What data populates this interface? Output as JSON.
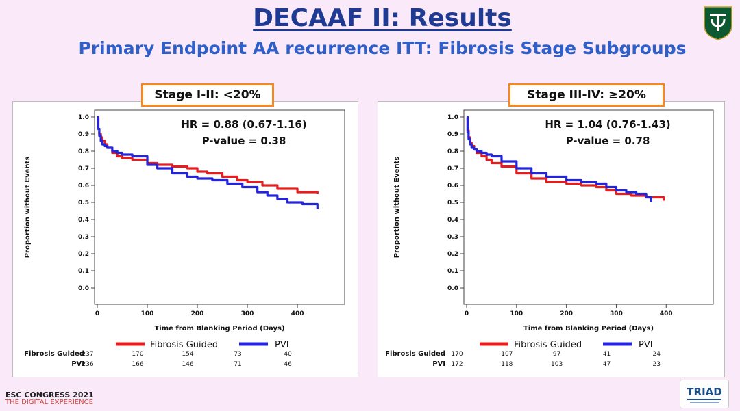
{
  "slide": {
    "title": "DECAAF II: Results",
    "subtitle": "Primary Endpoint AA recurrence ITT: Fibrosis Stage Subgroups",
    "footer_line1": "ESC CONGRESS 2021",
    "footer_line2": "THE DIGITAL EXPERIENCE",
    "triad_logo_text": "TRIAD",
    "colors": {
      "title": "#1f3a93",
      "subtitle": "#2f5fc9",
      "background": "#f9e9f9",
      "box_border": "#f08a28"
    }
  },
  "legend": {
    "fibrosis_guided": "Fibrosis Guided",
    "pvi": "PVI"
  },
  "series_colors": {
    "fibrosis_guided": "#e41e1e",
    "pvi": "#2424d8"
  },
  "chart_data": [
    {
      "type": "line",
      "stage_label": "Stage I-II: <20%",
      "hr_text": "HR = 0.88 (0.67-1.16)",
      "p_text": "P-value = 0.38",
      "xlabel": "Time from Blanking Period (Days)",
      "ylabel": "Proportion without Events",
      "xlim": [
        0,
        440
      ],
      "ylim": [
        0,
        1
      ],
      "xticks": [
        0,
        100,
        200,
        300,
        400
      ],
      "yticks": [
        0.0,
        0.1,
        0.2,
        0.3,
        0.4,
        0.5,
        0.6,
        0.7,
        0.8,
        0.9,
        1.0
      ],
      "ytick_labels": [
        "0.0",
        "0.1",
        "0.2",
        "0.3",
        "0.4",
        "0.5",
        "0.6",
        "0.7",
        "0.8",
        "0.9",
        "1.0"
      ],
      "series": [
        {
          "key": "fibrosis_guided",
          "name": "Fibrosis Guided",
          "x": [
            0,
            2,
            4,
            7,
            10,
            15,
            20,
            30,
            40,
            50,
            70,
            100,
            120,
            150,
            180,
            200,
            220,
            250,
            280,
            300,
            330,
            360,
            400,
            440
          ],
          "y": [
            1.0,
            0.93,
            0.9,
            0.88,
            0.86,
            0.84,
            0.82,
            0.79,
            0.77,
            0.76,
            0.75,
            0.73,
            0.72,
            0.71,
            0.7,
            0.68,
            0.67,
            0.65,
            0.63,
            0.62,
            0.6,
            0.58,
            0.56,
            0.55
          ],
          "risk": [
            237,
            170,
            154,
            73,
            40
          ]
        },
        {
          "key": "pvi",
          "name": "PVI",
          "x": [
            0,
            2,
            4,
            7,
            10,
            15,
            20,
            30,
            40,
            50,
            70,
            100,
            120,
            150,
            180,
            200,
            230,
            260,
            290,
            320,
            340,
            360,
            380,
            410,
            440
          ],
          "y": [
            1.0,
            0.93,
            0.89,
            0.86,
            0.84,
            0.83,
            0.82,
            0.8,
            0.79,
            0.78,
            0.77,
            0.72,
            0.7,
            0.67,
            0.65,
            0.64,
            0.63,
            0.61,
            0.59,
            0.56,
            0.54,
            0.52,
            0.5,
            0.49,
            0.46
          ],
          "risk": [
            236,
            166,
            146,
            71,
            46
          ]
        }
      ]
    },
    {
      "type": "line",
      "stage_label": "Stage III-IV: ≥20%",
      "hr_text": "HR = 1.04 (0.76-1.43)",
      "p_text": "P-value = 0.78",
      "xlabel": "Time from Blanking Period (Days)",
      "ylabel": "Proportion without Events",
      "xlim": [
        0,
        440
      ],
      "ylim": [
        0,
        1
      ],
      "xticks": [
        0,
        100,
        200,
        300,
        400
      ],
      "yticks": [
        0.0,
        0.1,
        0.2,
        0.3,
        0.4,
        0.5,
        0.6,
        0.7,
        0.8,
        0.9,
        1.0
      ],
      "ytick_labels": [
        "0.0",
        "0.1",
        "0.2",
        "0.3",
        "0.4",
        "0.5",
        "0.6",
        "0.7",
        "0.8",
        "0.9",
        "1.0"
      ],
      "series": [
        {
          "key": "fibrosis_guided",
          "name": "Fibrosis Guided",
          "x": [
            0,
            2,
            4,
            7,
            10,
            15,
            20,
            30,
            40,
            50,
            70,
            100,
            130,
            160,
            200,
            230,
            260,
            280,
            300,
            330,
            360,
            395
          ],
          "y": [
            1.0,
            0.92,
            0.88,
            0.85,
            0.83,
            0.81,
            0.79,
            0.77,
            0.75,
            0.73,
            0.71,
            0.67,
            0.64,
            0.62,
            0.61,
            0.6,
            0.59,
            0.57,
            0.55,
            0.54,
            0.53,
            0.51
          ],
          "risk": [
            170,
            107,
            97,
            41,
            24
          ]
        },
        {
          "key": "pvi",
          "name": "PVI",
          "x": [
            0,
            2,
            4,
            7,
            10,
            15,
            20,
            30,
            40,
            50,
            70,
            100,
            130,
            160,
            200,
            230,
            260,
            280,
            300,
            320,
            340,
            360,
            370
          ],
          "y": [
            1.0,
            0.91,
            0.87,
            0.84,
            0.82,
            0.81,
            0.8,
            0.79,
            0.78,
            0.77,
            0.74,
            0.7,
            0.67,
            0.65,
            0.63,
            0.62,
            0.61,
            0.59,
            0.57,
            0.56,
            0.55,
            0.53,
            0.5
          ],
          "risk": [
            172,
            118,
            103,
            47,
            23
          ]
        }
      ]
    }
  ]
}
